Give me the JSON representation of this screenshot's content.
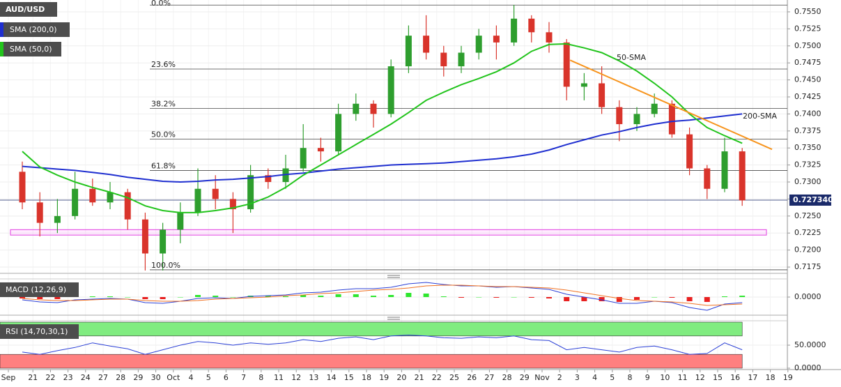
{
  "chart_data": [
    {
      "type": "candlestick",
      "title": "AUD/USD",
      "xticks": [
        "Sep",
        "21",
        "22",
        "23",
        "24",
        "27",
        "28",
        "29",
        "30",
        "Oct",
        "4",
        "5",
        "6",
        "7",
        "8",
        "11",
        "12",
        "13",
        "14",
        "15",
        "18",
        "19",
        "20",
        "21",
        "22",
        "25",
        "26",
        "27",
        "28",
        "29",
        "Nov",
        "2",
        "3",
        "4",
        "5",
        "8",
        "9",
        "10",
        "11",
        "12",
        "15",
        "16",
        "17",
        "18",
        "19"
      ],
      "open": [
        0.7315,
        0.727,
        0.724,
        0.725,
        0.729,
        0.727,
        0.7285,
        0.7245,
        0.7195,
        0.723,
        0.7255,
        0.729,
        0.7275,
        0.726,
        0.731,
        0.73,
        0.732,
        0.735,
        0.7345,
        0.74,
        0.7415,
        0.74,
        0.747,
        0.7515,
        0.749,
        0.747,
        0.749,
        0.7515,
        0.7505,
        0.754,
        0.752,
        0.7505,
        0.744,
        0.7445,
        0.741,
        0.7385,
        0.74,
        0.7415,
        0.737,
        0.732,
        0.729,
        0.7345
      ],
      "high": [
        0.733,
        0.7285,
        0.7275,
        0.7315,
        0.7305,
        0.73,
        0.729,
        0.7255,
        0.724,
        0.727,
        0.732,
        0.731,
        0.7285,
        0.7325,
        0.732,
        0.734,
        0.7385,
        0.7365,
        0.7415,
        0.743,
        0.742,
        0.748,
        0.753,
        0.7545,
        0.75,
        0.75,
        0.7525,
        0.753,
        0.756,
        0.7545,
        0.7535,
        0.751,
        0.746,
        0.747,
        0.742,
        0.741,
        0.743,
        0.742,
        0.738,
        0.7325,
        0.7365,
        0.735
      ],
      "low": [
        0.726,
        0.722,
        0.7225,
        0.7245,
        0.7265,
        0.726,
        0.723,
        0.717,
        0.717,
        0.721,
        0.725,
        0.726,
        0.7225,
        0.7255,
        0.729,
        0.729,
        0.7315,
        0.733,
        0.734,
        0.739,
        0.738,
        0.7395,
        0.746,
        0.748,
        0.7455,
        0.746,
        0.748,
        0.748,
        0.75,
        0.7505,
        0.749,
        0.742,
        0.742,
        0.74,
        0.736,
        0.7375,
        0.7395,
        0.7365,
        0.731,
        0.7275,
        0.7285,
        0.7265
      ],
      "close": [
        0.727,
        0.724,
        0.725,
        0.729,
        0.727,
        0.7285,
        0.7245,
        0.7195,
        0.723,
        0.7255,
        0.729,
        0.7275,
        0.726,
        0.731,
        0.73,
        0.732,
        0.735,
        0.7345,
        0.74,
        0.7415,
        0.74,
        0.747,
        0.7515,
        0.749,
        0.747,
        0.749,
        0.7515,
        0.7505,
        0.754,
        0.752,
        0.7505,
        0.744,
        0.7445,
        0.741,
        0.7385,
        0.74,
        0.7415,
        0.737,
        0.732,
        0.729,
        0.7345,
        0.7273
      ],
      "up_color": "#2e9e2e",
      "down_color": "#d9342b",
      "series": [
        {
          "name": "SMA (200,0)",
          "color": "#1f2fd0",
          "values": [
            0.7323,
            0.7321,
            0.7319,
            0.7317,
            0.7314,
            0.7311,
            0.7307,
            0.7304,
            0.7301,
            0.73,
            0.7301,
            0.7303,
            0.7304,
            0.7306,
            0.7308,
            0.7311,
            0.7313,
            0.7316,
            0.7319,
            0.7321,
            0.7323,
            0.7325,
            0.7326,
            0.7327,
            0.7328,
            0.733,
            0.7332,
            0.7334,
            0.7337,
            0.7341,
            0.7347,
            0.7355,
            0.7362,
            0.7369,
            0.7374,
            0.738,
            0.7385,
            0.7389,
            0.7391,
            0.7394,
            0.7397,
            0.74
          ]
        },
        {
          "name": "SMA (50,0)",
          "color": "#22c41c",
          "values": [
            0.7345,
            0.7322,
            0.731,
            0.73,
            0.7292,
            0.7285,
            0.7277,
            0.7265,
            0.7258,
            0.7255,
            0.7255,
            0.7258,
            0.7262,
            0.7268,
            0.7278,
            0.7292,
            0.731,
            0.7325,
            0.734,
            0.7355,
            0.737,
            0.7385,
            0.7402,
            0.742,
            0.7432,
            0.7443,
            0.7452,
            0.7462,
            0.7475,
            0.7492,
            0.7502,
            0.7503,
            0.7497,
            0.749,
            0.7478,
            0.7463,
            0.7445,
            0.7425,
            0.74,
            0.738,
            0.7368,
            0.7357
          ]
        }
      ],
      "annotations": [
        {
          "text": "50-SMA",
          "color": "#2fbf2f"
        },
        {
          "text": "200-SMA",
          "color": "#5c6cf0"
        }
      ],
      "fib_levels": [
        {
          "value": 0.756,
          "label": "0.0%"
        },
        {
          "value": 0.7466,
          "label": "23.6%"
        },
        {
          "value": 0.7408,
          "label": "38.2%"
        },
        {
          "value": 0.7363,
          "label": "50.0%"
        },
        {
          "value": 0.7317,
          "label": "61.8%"
        },
        {
          "value": 0.7171,
          "label": "100.0%"
        }
      ],
      "trendline": {
        "x": [
          31.2,
          42.7
        ],
        "values": [
          0.7479,
          0.7348
        ],
        "color": "#f7941d"
      },
      "support_zone": [
        0.7222,
        0.723
      ],
      "last_price": {
        "value": 0.72734,
        "label": "0.727340"
      },
      "ylim": [
        0.71658,
        0.75674
      ],
      "yticks": [
        {
          "value": 0.7175,
          "label": "0.7175"
        },
        {
          "value": 0.72,
          "label": "0.7200"
        },
        {
          "value": 0.7225,
          "label": "0.7225"
        },
        {
          "value": 0.725,
          "label": "0.7250"
        },
        {
          "value": 0.7275,
          "label": "0.7275"
        },
        {
          "value": 0.73,
          "label": "0.7300"
        },
        {
          "value": 0.7325,
          "label": "0.7325"
        },
        {
          "value": 0.735,
          "label": "0.7350"
        },
        {
          "value": 0.7375,
          "label": "0.7375"
        },
        {
          "value": 0.74,
          "label": "0.7400"
        },
        {
          "value": 0.7425,
          "label": "0.7425"
        },
        {
          "value": 0.745,
          "label": "0.7450"
        },
        {
          "value": 0.7475,
          "label": "0.7475"
        },
        {
          "value": 0.75,
          "label": "0.7500"
        },
        {
          "value": 0.7525,
          "label": "0.7525"
        },
        {
          "value": 0.755,
          "label": "0.7550"
        }
      ]
    },
    {
      "type": "macd",
      "title": "MACD (12,26,9)",
      "series": [
        {
          "color": "#2a3fd6",
          "values": [
            -0.0004,
            -0.0007,
            -0.0008,
            -0.0004,
            -0.0003,
            -0.0002,
            -0.0003,
            -0.0008,
            -0.0009,
            -0.0006,
            -0.0002,
            -0.0001,
            -0.0002,
            0.0001,
            0.0002,
            0.0003,
            0.0006,
            0.0007,
            0.001,
            0.0012,
            0.0012,
            0.0014,
            0.0019,
            0.0021,
            0.0018,
            0.0016,
            0.0016,
            0.0014,
            0.0015,
            0.0013,
            0.0011,
            0.0004,
            0.0,
            -0.0004,
            -0.0009,
            -0.0009,
            -0.0006,
            -0.0008,
            -0.0015,
            -0.0019,
            -0.001,
            -0.0008
          ]
        },
        {
          "color": "#f07020",
          "values": [
            -0.0002,
            -0.0004,
            -0.0005,
            -0.0005,
            -0.0004,
            -0.0003,
            -0.0003,
            -0.0005,
            -0.0006,
            -0.0006,
            -0.0005,
            -0.0003,
            -0.0002,
            -0.0001,
            0.0,
            0.0002,
            0.0003,
            0.0005,
            0.0006,
            0.0008,
            0.001,
            0.0011,
            0.0013,
            0.0016,
            0.0017,
            0.0017,
            0.0016,
            0.0015,
            0.0015,
            0.0014,
            0.0013,
            0.001,
            0.0006,
            0.0002,
            -0.0002,
            -0.0005,
            -0.0006,
            -0.0007,
            -0.0009,
            -0.0012,
            -0.0011,
            -0.001
          ]
        }
      ],
      "histogram": {
        "values": [
          -0.0002,
          -0.0003,
          -0.0003,
          0.0001,
          0.0001,
          0.0001,
          0,
          -0.0003,
          -0.0003,
          0,
          0.0003,
          0.0002,
          0,
          0.0002,
          0.0002,
          0.0001,
          0.0003,
          0.0002,
          0.0004,
          0.0004,
          0.0002,
          0.0003,
          0.0006,
          0.0005,
          0.0001,
          -0.0001,
          0,
          -0.0001,
          0,
          -0.0001,
          -0.0002,
          -0.0006,
          -0.0006,
          -0.0006,
          -0.0007,
          -0.0004,
          0,
          -0.0001,
          -0.0006,
          -0.0007,
          0.0001,
          0.0002
        ],
        "up_color": "#2ee62e",
        "down_color": "#e82020"
      },
      "ylim": [
        -0.0026,
        0.0026
      ],
      "yticks": [
        {
          "value": 0,
          "label": "0.0000"
        }
      ]
    },
    {
      "type": "rsi",
      "title": "RSI (14,70,30,1)",
      "series": [
        {
          "color": "#2a3fd6",
          "values": [
            35,
            30,
            38,
            45,
            55,
            48,
            42,
            30,
            40,
            50,
            58,
            55,
            50,
            55,
            52,
            55,
            62,
            58,
            65,
            68,
            62,
            70,
            72,
            70,
            66,
            65,
            68,
            66,
            70,
            62,
            60,
            40,
            45,
            40,
            35,
            45,
            48,
            40,
            30,
            32,
            55,
            40
          ]
        }
      ],
      "upper": 70,
      "lower": 30,
      "band_colors": [
        "#80ec80",
        "#ff8080"
      ],
      "ylim": [
        0,
        100
      ],
      "yticks": [
        {
          "value": 50,
          "label": "50.0000"
        },
        {
          "value": 0,
          "label": "0.0000"
        }
      ]
    }
  ]
}
